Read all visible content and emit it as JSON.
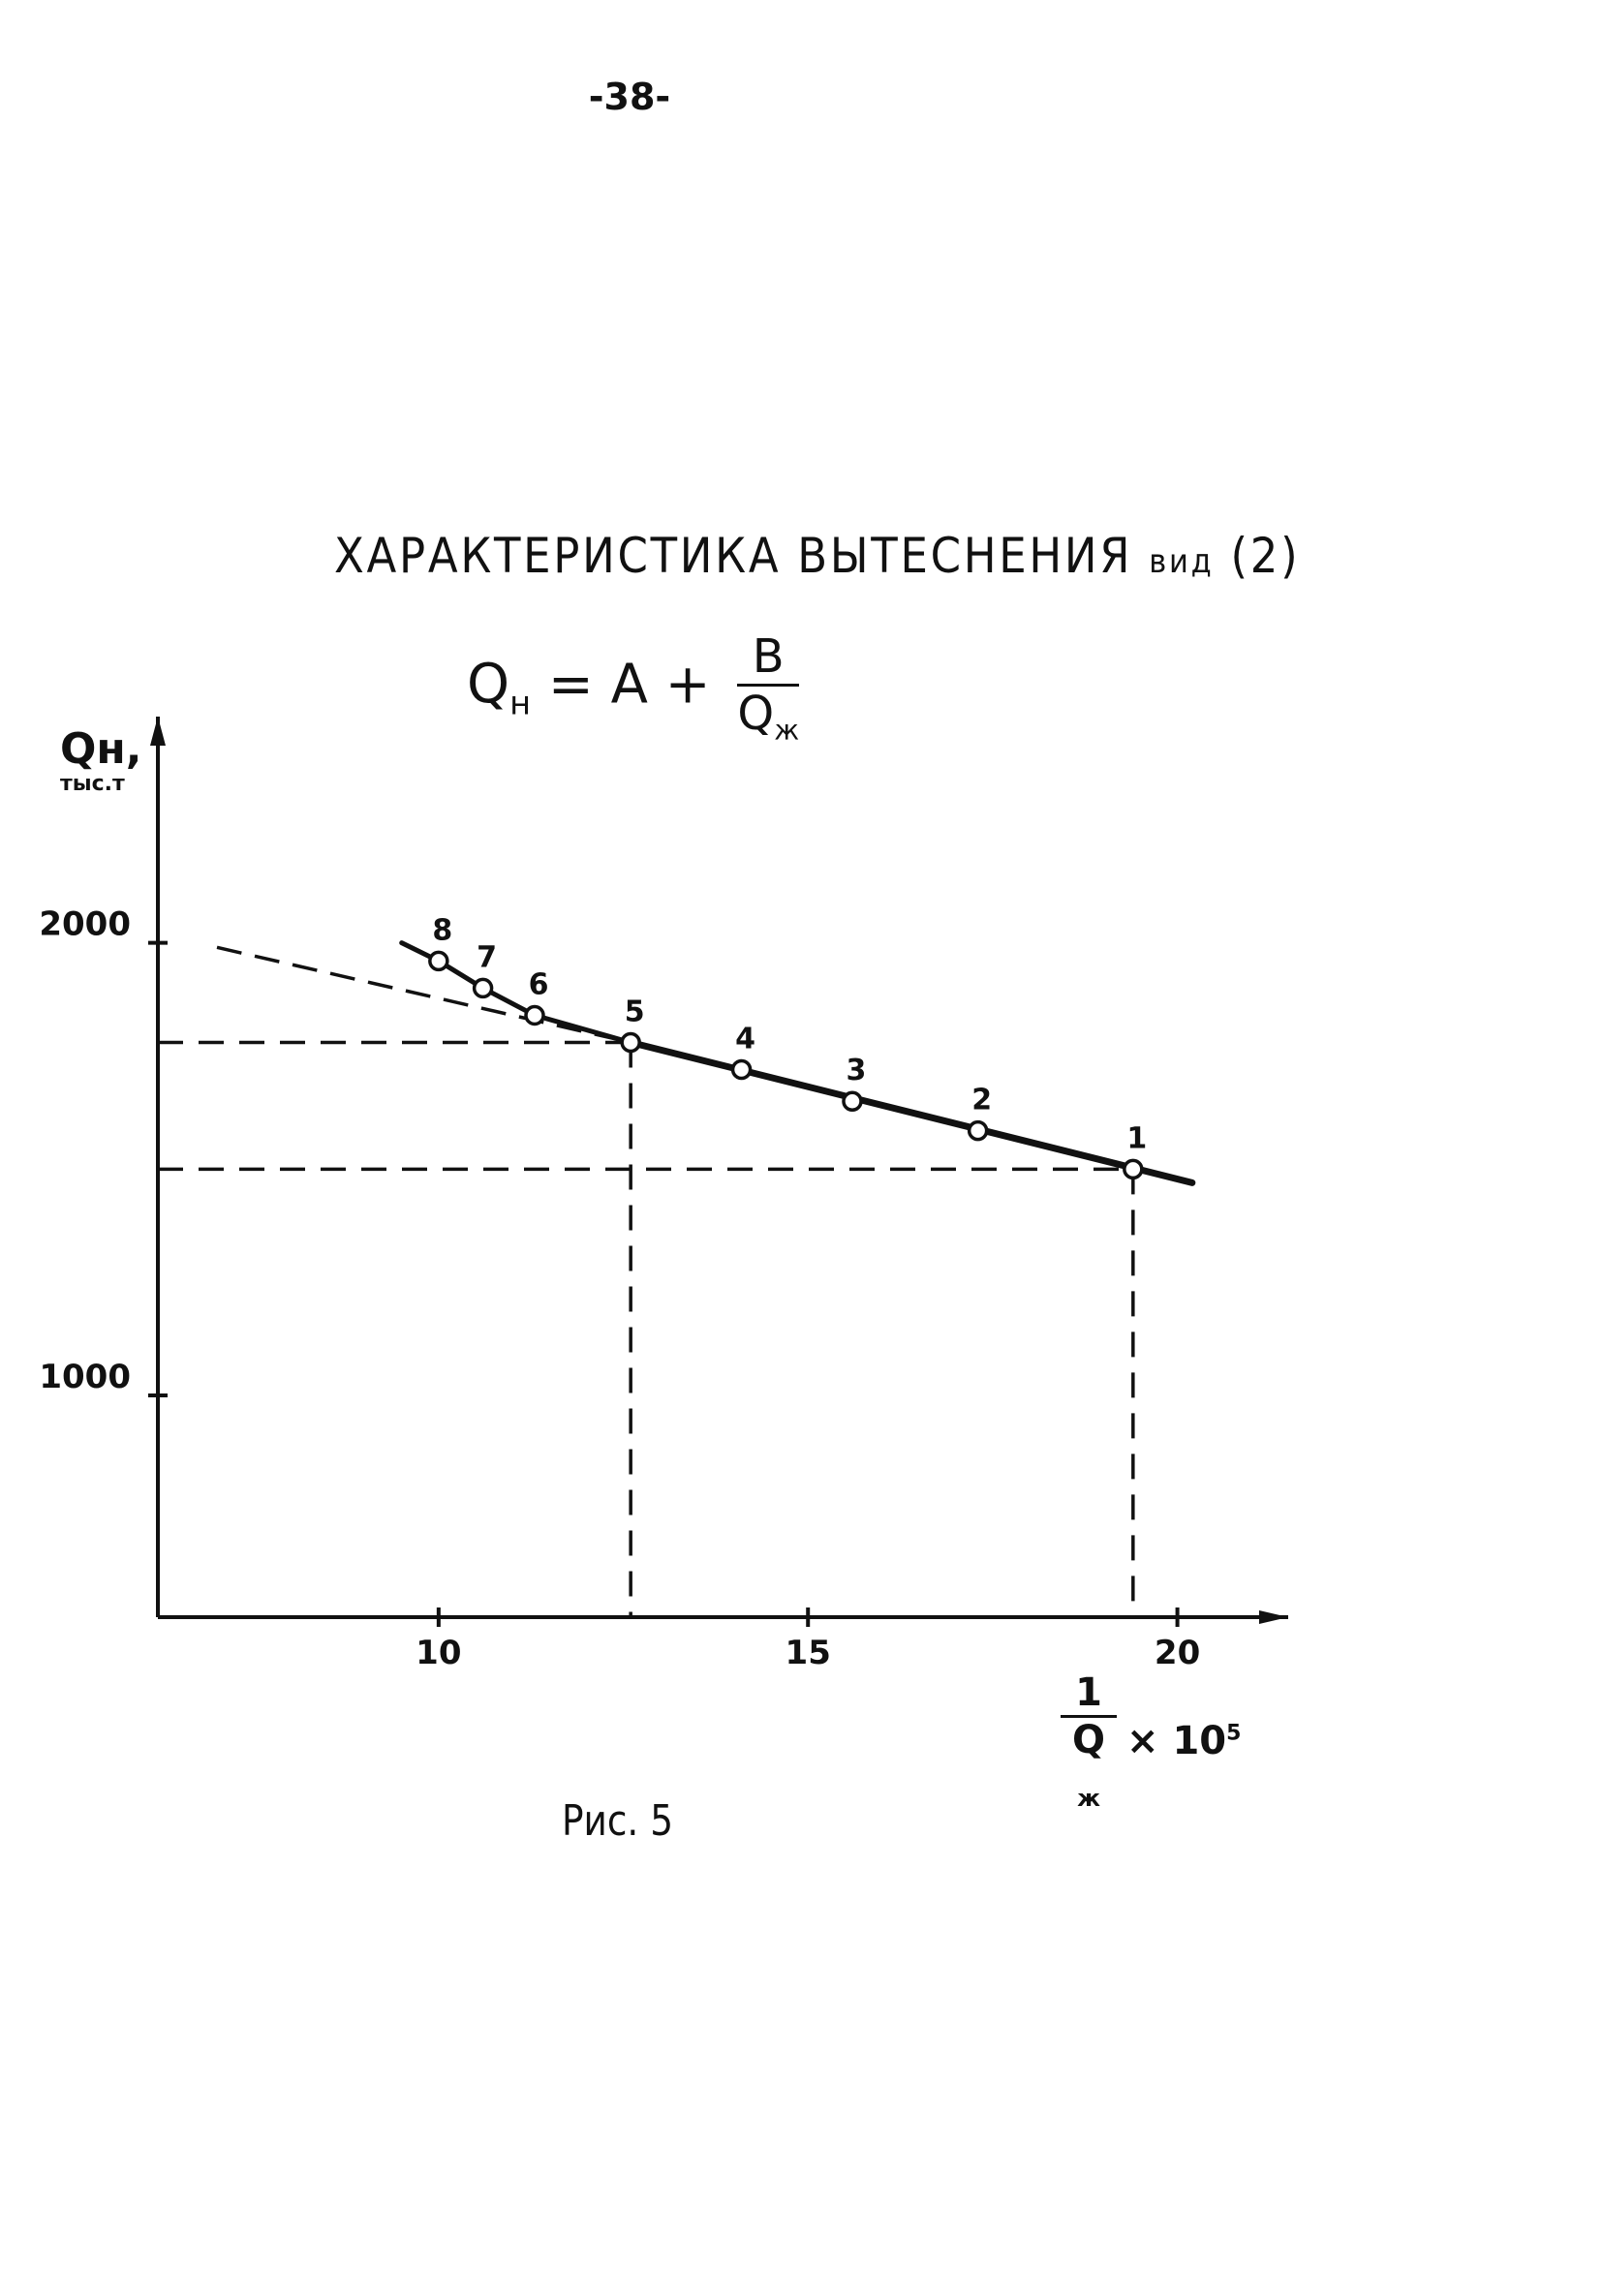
{
  "page": {
    "number": "-38-"
  },
  "title": {
    "main": "ХАРАКТЕРИСТИКА ВЫТЕСНЕНИЯ",
    "vid": "вид",
    "suffix": "(2)"
  },
  "formula": {
    "lhs": "Q",
    "lhs_sub": "н",
    "mid": " = A + ",
    "num": "B",
    "den": "Q",
    "den_sub": "ж"
  },
  "caption": "Рис. 5",
  "chart_data": {
    "type": "scatter",
    "title": "ХАРАКТЕРИСТИКА ВЫТЕСНЕНИЯ вид (2)",
    "ylabel": "Qн, тыс.т",
    "xlabel": "1/Qж × 10^5",
    "y_label_main": "Qн,",
    "y_label_unit": "тыс.т",
    "x_label": {
      "num": "1",
      "den": "Q",
      "den_sub": "ж",
      "mult": "× 10",
      "exp": "5"
    },
    "xlim": [
      6.2,
      21.5
    ],
    "ylim": [
      510,
      2500
    ],
    "x_ticks": [
      10,
      15,
      20
    ],
    "y_ticks": [
      1000,
      2000
    ],
    "grid": false,
    "points": [
      {
        "label": "1",
        "x": 19.4,
        "y": 1500
      },
      {
        "label": "2",
        "x": 17.3,
        "y": 1585
      },
      {
        "label": "3",
        "x": 15.6,
        "y": 1650
      },
      {
        "label": "4",
        "x": 14.1,
        "y": 1720
      },
      {
        "label": "5",
        "x": 12.6,
        "y": 1780
      },
      {
        "label": "6",
        "x": 11.3,
        "y": 1840
      },
      {
        "label": "7",
        "x": 10.6,
        "y": 1900
      },
      {
        "label": "8",
        "x": 10.0,
        "y": 1960
      }
    ],
    "fit_line": {
      "x": [
        12.6,
        20.2
      ],
      "y": [
        1780,
        1470
      ]
    },
    "upper_curve": {
      "x": [
        9.5,
        10.0,
        10.6,
        11.3,
        12.6
      ],
      "y": [
        2000,
        1960,
        1900,
        1840,
        1780
      ]
    },
    "extrapolation_line": {
      "x": [
        7.0,
        12.6
      ],
      "y": [
        1990,
        1780
      ]
    },
    "reference_lines": [
      {
        "point": "5",
        "x": 12.6,
        "y": 1780
      },
      {
        "point": "1",
        "x": 19.4,
        "y": 1500
      }
    ]
  }
}
